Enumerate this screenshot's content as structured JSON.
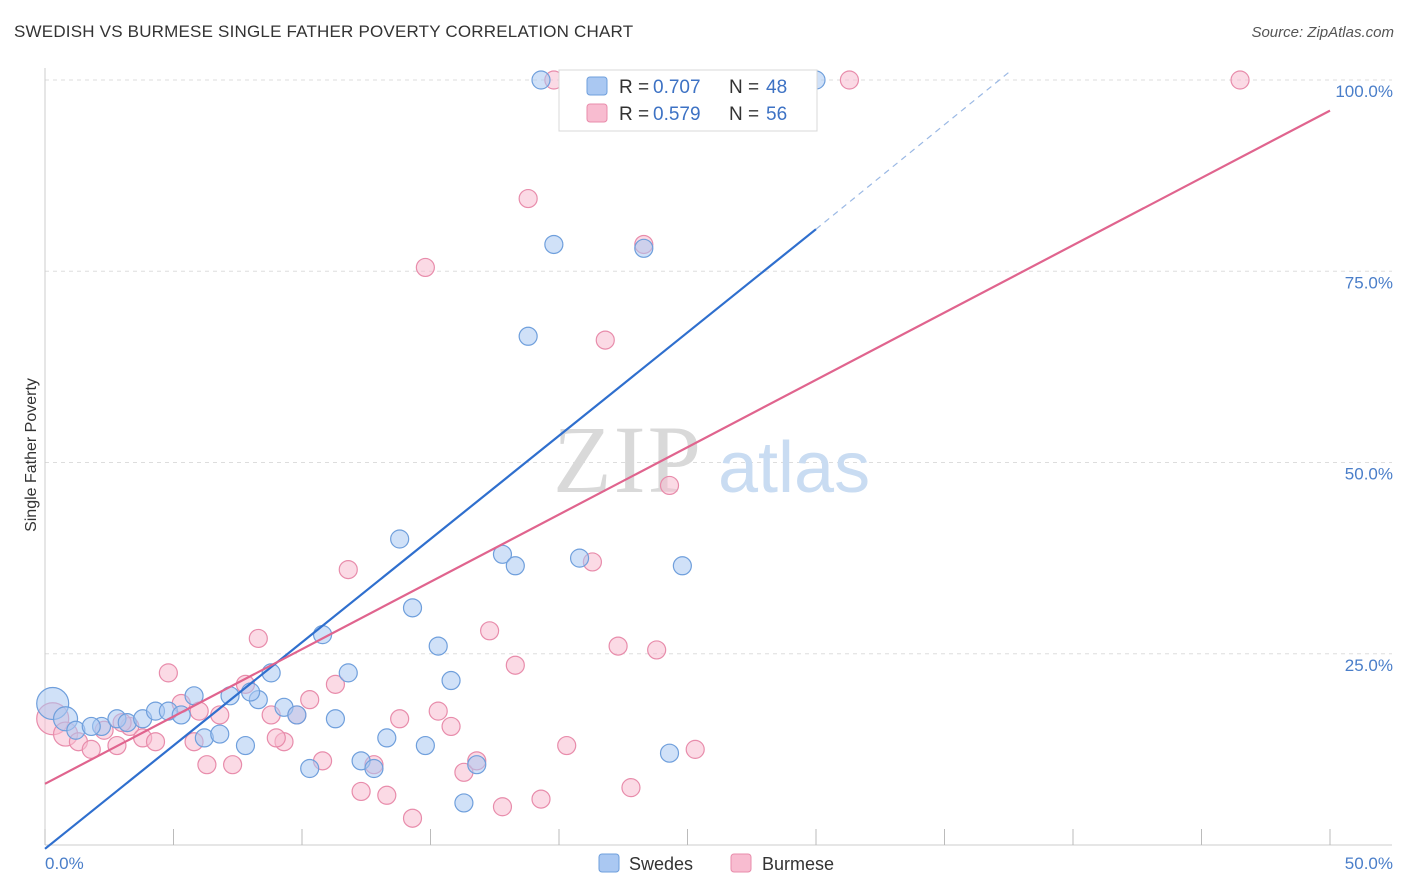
{
  "title": "SWEDISH VS BURMESE SINGLE FATHER POVERTY CORRELATION CHART",
  "source": "Source: ZipAtlas.com",
  "watermark": {
    "zip": "ZIP",
    "atlas": "atlas"
  },
  "colors": {
    "swedes_fill": "#aac8f2",
    "swedes_stroke": "#6f9fdc",
    "swedes_line": "#2f6fce",
    "burmese_fill": "#f8bcd0",
    "burmese_stroke": "#e88cab",
    "burmese_line": "#e0648e",
    "tick_label": "#4a7ec9",
    "grid": "#dddddd"
  },
  "legend": {
    "r_label": "R =",
    "n_label": "N =",
    "rows": [
      {
        "series": "Swedes",
        "r": "0.707",
        "n": "48"
      },
      {
        "series": "Burmese",
        "r": "0.579",
        "n": "56"
      }
    ]
  },
  "chart_data": {
    "type": "scatter",
    "title": "SWEDISH VS BURMESE SINGLE FATHER POVERTY CORRELATION CHART",
    "xlabel": "",
    "ylabel": "Single Father Poverty",
    "xlim": [
      0,
      50
    ],
    "ylim": [
      0,
      100
    ],
    "x_tick_labels": [
      {
        "value": 0,
        "label": "0.0%"
      },
      {
        "value": 50,
        "label": "50.0%"
      }
    ],
    "y_tick_labels": [
      {
        "value": 25,
        "label": "25.0%"
      },
      {
        "value": 50,
        "label": "50.0%"
      },
      {
        "value": 75,
        "label": "75.0%"
      },
      {
        "value": 100,
        "label": "100.0%"
      }
    ],
    "grid": true,
    "legend_position": "top-center",
    "series": [
      {
        "name": "Swedes",
        "trend": {
          "x0": 0,
          "y0": -0.5,
          "x1": 30,
          "y1": 80.5,
          "dashed_to_x": 37.5,
          "dashed_to_y": 101
        },
        "points": [
          [
            0.3,
            18.5,
            2
          ],
          [
            0.8,
            16.5,
            1
          ],
          [
            1.2,
            15,
            0
          ],
          [
            2.2,
            15.5,
            0
          ],
          [
            2.8,
            16.5,
            0
          ],
          [
            3.2,
            16,
            0
          ],
          [
            3.8,
            16.5,
            0
          ],
          [
            4.3,
            17.5,
            0
          ],
          [
            4.8,
            17.5,
            0
          ],
          [
            5.3,
            17,
            0
          ],
          [
            5.8,
            19.5,
            0
          ],
          [
            6.2,
            14,
            0
          ],
          [
            6.8,
            14.5,
            0
          ],
          [
            7.2,
            19.5,
            0
          ],
          [
            7.8,
            13,
            0
          ],
          [
            8.3,
            19,
            0
          ],
          [
            8.8,
            22.5,
            0
          ],
          [
            9.3,
            18,
            0
          ],
          [
            9.8,
            17,
            0
          ],
          [
            10.3,
            10,
            0
          ],
          [
            10.8,
            27.5,
            0
          ],
          [
            11.3,
            16.5,
            0
          ],
          [
            11.8,
            22.5,
            0
          ],
          [
            12.3,
            11,
            0
          ],
          [
            12.8,
            10,
            0
          ],
          [
            13.3,
            14,
            0
          ],
          [
            13.8,
            40,
            0
          ],
          [
            14.3,
            31,
            0
          ],
          [
            14.8,
            13,
            0
          ],
          [
            15.3,
            26,
            0
          ],
          [
            15.8,
            21.5,
            0
          ],
          [
            16.3,
            5.5,
            0
          ],
          [
            16.8,
            10.5,
            0
          ],
          [
            17.8,
            38,
            0
          ],
          [
            18.3,
            36.5,
            0
          ],
          [
            18.8,
            66.5,
            0
          ],
          [
            19.3,
            100,
            0
          ],
          [
            19.8,
            78.5,
            0
          ],
          [
            20.8,
            37.5,
            0
          ],
          [
            22.3,
            100,
            0
          ],
          [
            23.3,
            78,
            0
          ],
          [
            23.8,
            100,
            0
          ],
          [
            24.3,
            12,
            0
          ],
          [
            24.8,
            36.5,
            0
          ],
          [
            27.8,
            100,
            0
          ],
          [
            30.0,
            100,
            0
          ],
          [
            1.8,
            15.5,
            0
          ],
          [
            8.0,
            20,
            0
          ]
        ]
      },
      {
        "name": "Burmese",
        "trend": {
          "x0": 0,
          "y0": 8,
          "x1": 50,
          "y1": 96
        },
        "points": [
          [
            0.3,
            16.5,
            2
          ],
          [
            0.8,
            14.5,
            1
          ],
          [
            1.3,
            13.5,
            0
          ],
          [
            1.8,
            12.5,
            0
          ],
          [
            2.3,
            15,
            0
          ],
          [
            2.8,
            13,
            0
          ],
          [
            3.3,
            15.5,
            0
          ],
          [
            3.8,
            14,
            0
          ],
          [
            4.3,
            13.5,
            0
          ],
          [
            4.8,
            22.5,
            0
          ],
          [
            5.3,
            18.5,
            0
          ],
          [
            5.8,
            13.5,
            0
          ],
          [
            6.3,
            10.5,
            0
          ],
          [
            6.8,
            17,
            0
          ],
          [
            7.3,
            10.5,
            0
          ],
          [
            7.8,
            21,
            0
          ],
          [
            8.3,
            27,
            0
          ],
          [
            8.8,
            17,
            0
          ],
          [
            9.3,
            13.5,
            0
          ],
          [
            9.8,
            17,
            0
          ],
          [
            10.3,
            19,
            0
          ],
          [
            10.8,
            11,
            0
          ],
          [
            11.3,
            21,
            0
          ],
          [
            11.8,
            36,
            0
          ],
          [
            12.3,
            7,
            0
          ],
          [
            12.8,
            10.5,
            0
          ],
          [
            13.3,
            6.5,
            0
          ],
          [
            13.8,
            16.5,
            0
          ],
          [
            14.3,
            3.5,
            0
          ],
          [
            14.8,
            75.5,
            0
          ],
          [
            15.3,
            17.5,
            0
          ],
          [
            15.8,
            15.5,
            0
          ],
          [
            16.3,
            9.5,
            0
          ],
          [
            16.8,
            11,
            0
          ],
          [
            17.3,
            28,
            0
          ],
          [
            17.8,
            5,
            0
          ],
          [
            18.3,
            23.5,
            0
          ],
          [
            18.8,
            84.5,
            0
          ],
          [
            19.3,
            6,
            0
          ],
          [
            19.8,
            100,
            0
          ],
          [
            20.3,
            13,
            0
          ],
          [
            20.8,
            100,
            0
          ],
          [
            21.3,
            37,
            0
          ],
          [
            21.8,
            66,
            0
          ],
          [
            22.3,
            26,
            0
          ],
          [
            22.8,
            7.5,
            0
          ],
          [
            23.3,
            78.5,
            0
          ],
          [
            23.8,
            25.5,
            0
          ],
          [
            24.3,
            47,
            0
          ],
          [
            25.3,
            12.5,
            0
          ],
          [
            27.8,
            100,
            0
          ],
          [
            31.3,
            100,
            0
          ],
          [
            46.5,
            100,
            0
          ],
          [
            3.0,
            16,
            0
          ],
          [
            6.0,
            17.5,
            0
          ],
          [
            9.0,
            14,
            0
          ]
        ]
      }
    ]
  }
}
